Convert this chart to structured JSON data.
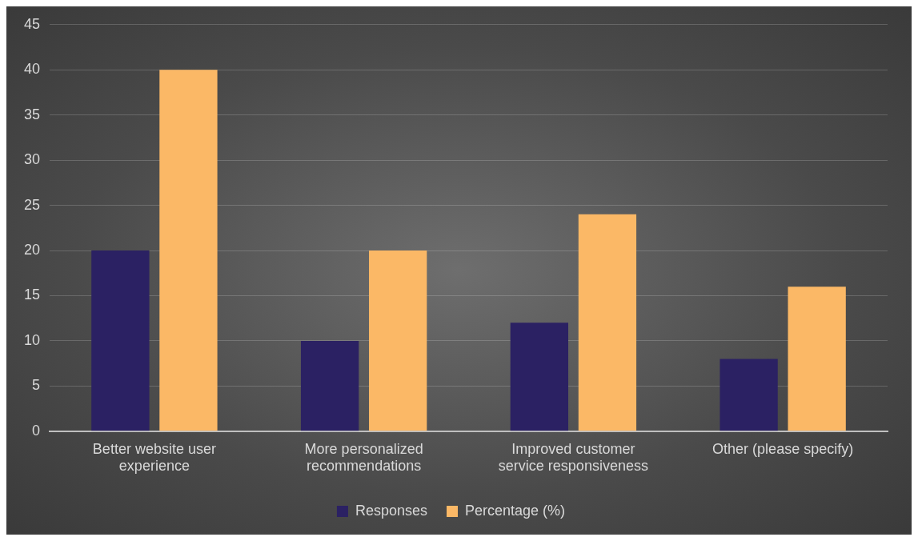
{
  "chart_data": {
    "type": "bar",
    "categories": [
      "Better website user experience",
      "More personalized recommendations",
      "Improved customer service responsiveness",
      "Other (please specify)"
    ],
    "series": [
      {
        "name": "Responses",
        "color": "#2b2163",
        "values": [
          20,
          10,
          12,
          8
        ]
      },
      {
        "name": "Percentage (%)",
        "color": "#fbb866",
        "values": [
          40,
          20,
          24,
          16
        ]
      }
    ],
    "ylim": [
      0,
      45
    ],
    "yticks": [
      0,
      5,
      10,
      15,
      20,
      25,
      30,
      35,
      40,
      45
    ],
    "grid": "y",
    "legend": "bottom"
  }
}
